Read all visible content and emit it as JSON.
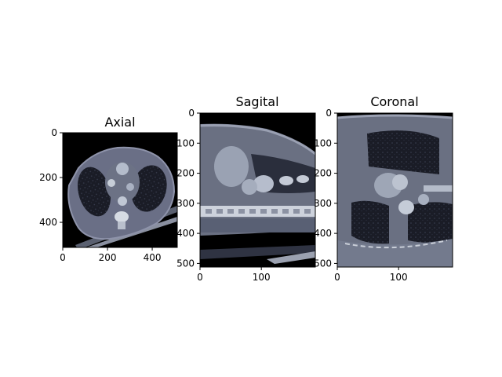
{
  "chart_data": [
    {
      "type": "image",
      "title": "Axial",
      "image_shape": [
        512,
        512
      ],
      "xticks": [
        0,
        200,
        400
      ],
      "yticks": [
        0,
        200,
        400
      ],
      "xlim": [
        0,
        512
      ],
      "ylim": [
        512,
        0
      ],
      "colormap": "bone",
      "content": "axial CT slice of chest"
    },
    {
      "type": "image",
      "title": "Sagital",
      "image_shape": [
        512,
        188
      ],
      "xticks": [
        0,
        100
      ],
      "yticks": [
        0,
        100,
        200,
        300,
        400,
        500
      ],
      "xlim": [
        0,
        188
      ],
      "ylim": [
        512,
        0
      ],
      "colormap": "bone",
      "content": "sagittal CT reconstruction of chest"
    },
    {
      "type": "image",
      "title": "Coronal",
      "image_shape": [
        512,
        188
      ],
      "xticks": [
        0,
        100
      ],
      "yticks": [
        0,
        100,
        200,
        300,
        400,
        500
      ],
      "xlim": [
        0,
        188
      ],
      "ylim": [
        512,
        0
      ],
      "colormap": "bone",
      "content": "coronal CT reconstruction of chest"
    }
  ]
}
